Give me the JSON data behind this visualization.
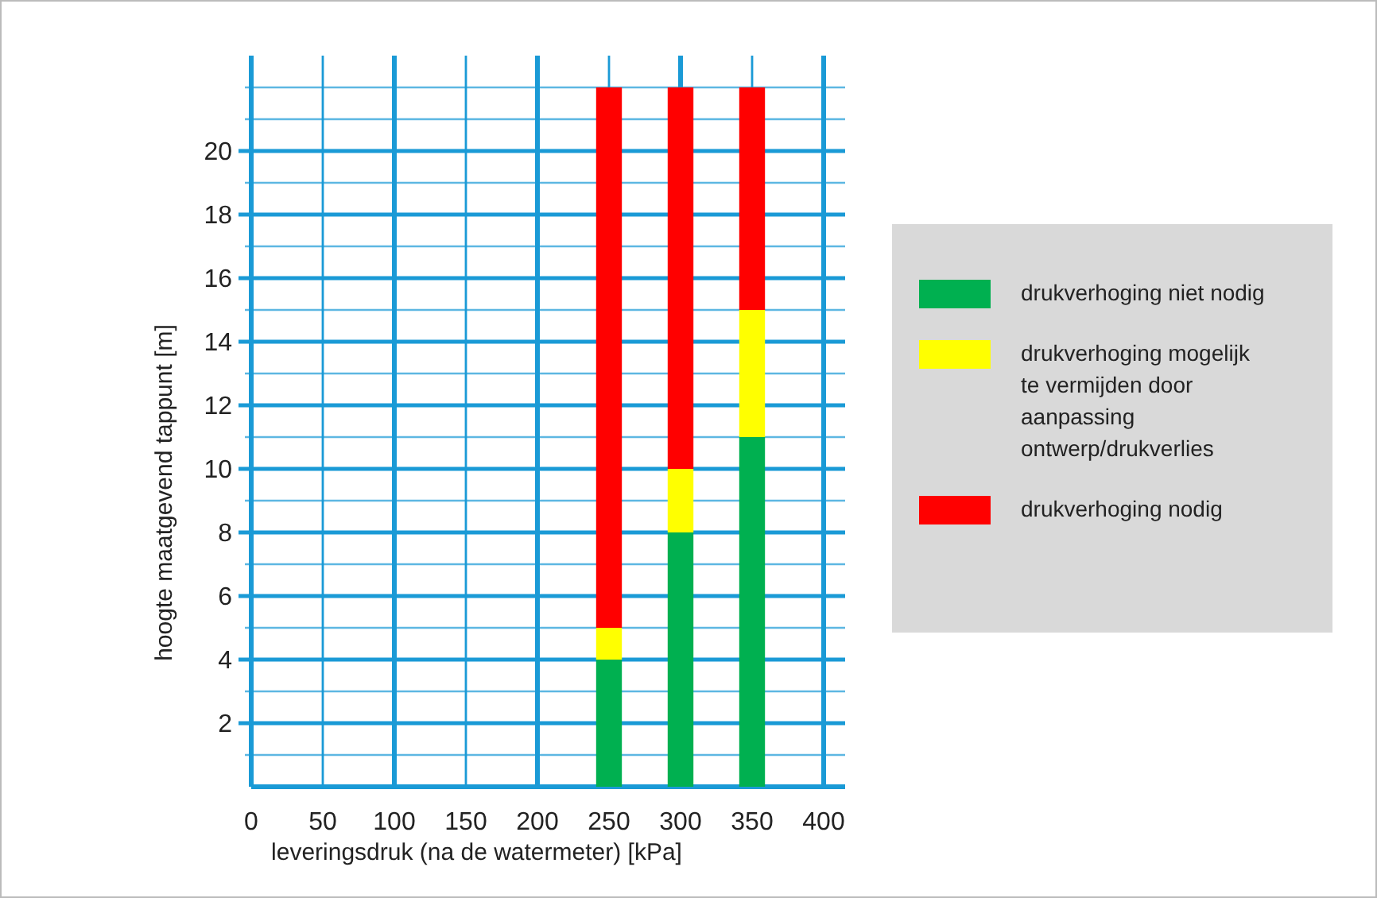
{
  "chart_data": {
    "type": "bar",
    "stacked": true,
    "xlabel": "leveringsdruk (na de watermeter)  [kPa]",
    "ylabel": "hoogte maatgevend  tappunt  [m]",
    "x": [
      250,
      300,
      350
    ],
    "series": [
      {
        "name": "drukverhoging niet nodig",
        "color": "#00b050",
        "values": [
          4,
          8,
          11
        ]
      },
      {
        "name": "drukverhoging mogelijk te vermijden door aanpassing ontwerp/drukverlies",
        "color": "#ffff00",
        "values": [
          1,
          2,
          4
        ]
      },
      {
        "name": "drukverhoging  nodig",
        "color": "#ff0000",
        "values": [
          17,
          12,
          7
        ]
      }
    ],
    "xlim": [
      0,
      415
    ],
    "xticks": [
      0,
      50,
      100,
      150,
      200,
      250,
      300,
      350,
      400
    ],
    "ylim": [
      0,
      23
    ],
    "yticks": [
      {
        "value": 1,
        "label": null
      },
      2,
      {
        "value": 3,
        "label": null
      },
      4,
      {
        "value": 5,
        "label": null
      },
      6,
      {
        "value": 7,
        "label": null
      },
      8,
      {
        "value": 9,
        "label": null
      },
      10,
      {
        "value": 11,
        "label": null
      },
      12,
      {
        "value": 13,
        "label": null
      },
      14,
      {
        "value": 15,
        "label": null
      },
      16,
      {
        "value": 17,
        "label": null
      },
      18,
      {
        "value": 19,
        "label": null
      },
      20,
      {
        "value": 21,
        "label": null
      },
      {
        "value": 22,
        "label": null
      }
    ],
    "grid": true,
    "legend": "right"
  }
}
